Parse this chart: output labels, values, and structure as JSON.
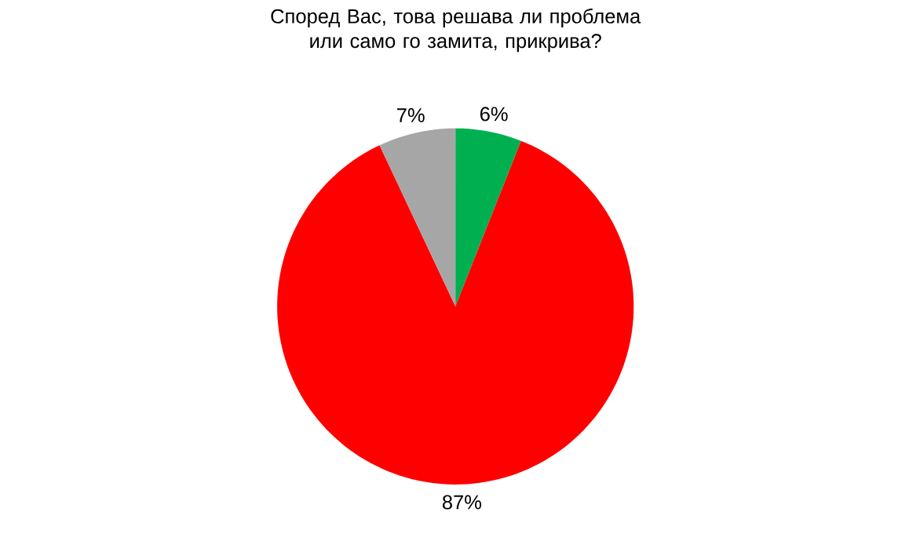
{
  "chart_data": {
    "type": "pie",
    "title": "Според Вас, това решава ли проблема или само го замита, прикрива?",
    "categories": [
      null,
      null,
      null
    ],
    "values": [
      6,
      87,
      7
    ],
    "value_labels": [
      "6%",
      "87%",
      "7%"
    ],
    "colors": [
      "#00b050",
      "#ff0000",
      "#a6a6a6"
    ]
  }
}
